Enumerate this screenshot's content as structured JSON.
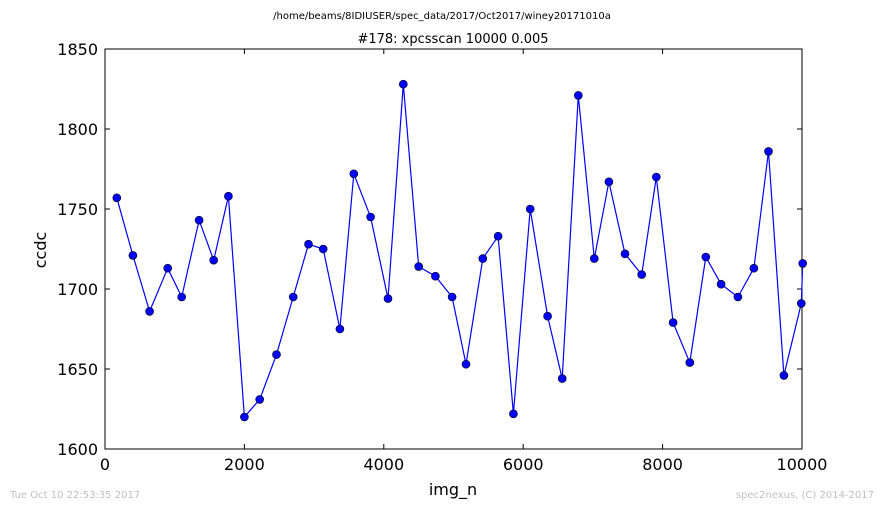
{
  "header": {
    "path": "/home/beams/8IDIUSER/spec_data/2017/Oct2017/winey20171010a"
  },
  "footer": {
    "timestamp": "Tue Oct 10 22:53:35 2017",
    "credit": "spec2nexus, (C) 2014-2017"
  },
  "colors": {
    "series": "#0000ff",
    "footer_text": "#bfbfbf",
    "axis": "#000000"
  },
  "chart_data": {
    "type": "line",
    "title": "#178: xpcsscan 10000 0.005",
    "xlabel": "img_n",
    "ylabel": "ccdc",
    "xlim": [
      0,
      10000
    ],
    "ylim": [
      1600,
      1850
    ],
    "xticks": [
      0,
      2000,
      4000,
      6000,
      8000,
      10000
    ],
    "yticks": [
      1600,
      1650,
      1700,
      1750,
      1800,
      1850
    ],
    "grid": false,
    "marker": "circle",
    "series": [
      {
        "x": [
          170,
          400,
          640,
          900,
          1100,
          1350,
          1560,
          1770,
          2000,
          2220,
          2460,
          2700,
          2920,
          3130,
          3370,
          3570,
          3810,
          4060,
          4280,
          4500,
          4740,
          4980,
          5180,
          5420,
          5640,
          5860,
          6100,
          6350,
          6560,
          6790,
          7020,
          7230,
          7460,
          7700,
          7910,
          8150,
          8390,
          8620,
          8840,
          9080,
          9310,
          9520,
          9740,
          9990,
          10010
        ],
        "y": [
          1757,
          1721,
          1686,
          1713,
          1695,
          1743,
          1718,
          1758,
          1620,
          1631,
          1659,
          1695,
          1728,
          1725,
          1675,
          1772,
          1745,
          1694,
          1828,
          1714,
          1708,
          1695,
          1653,
          1719,
          1733,
          1622,
          1750,
          1683,
          1644,
          1821,
          1719,
          1767,
          1722,
          1709,
          1770,
          1679,
          1654,
          1720,
          1703,
          1695,
          1713,
          1786,
          1646,
          1691,
          1716
        ]
      }
    ]
  }
}
